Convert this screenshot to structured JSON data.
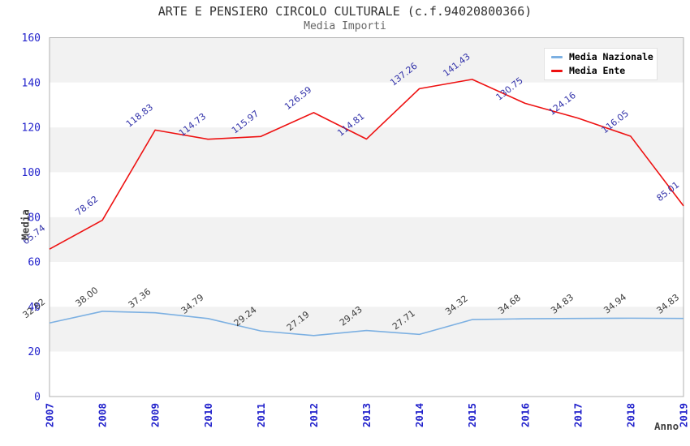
{
  "header": {
    "title": "ARTE E PENSIERO CIRCOLO CULTURALE (c.f.94020800366)",
    "subtitle": "Media Importi"
  },
  "chart_data": {
    "type": "line",
    "title": "ARTE E PENSIERO CIRCOLO CULTURALE (c.f.94020800366)",
    "subtitle": "Media Importi",
    "xlabel": "Anno",
    "ylabel": "Media",
    "categories": [
      "2007",
      "2008",
      "2009",
      "2010",
      "2011",
      "2012",
      "2013",
      "2014",
      "2015",
      "2016",
      "2017",
      "2018",
      "2019"
    ],
    "series": [
      {
        "name": "Media Nazionale",
        "color": "#7cb0e2",
        "label_color": "#3c3c3c",
        "values": [
          32.82,
          38.0,
          37.36,
          34.79,
          29.24,
          27.19,
          29.43,
          27.71,
          34.32,
          34.68,
          34.83,
          34.94,
          34.83
        ]
      },
      {
        "name": "Media Ente",
        "color": "#ee1111",
        "label_color": "#3333aa",
        "values": [
          65.74,
          78.62,
          118.83,
          114.73,
          115.97,
          126.59,
          114.81,
          137.26,
          141.43,
          130.75,
          124.16,
          116.05,
          85.01
        ]
      }
    ],
    "ylim": [
      0,
      160
    ],
    "yticks": [
      0,
      20,
      40,
      60,
      80,
      100,
      120,
      140,
      160
    ],
    "grid": "alternating-horizontal-bands",
    "band_color": "#f2f2f2",
    "plot_border_color": "#b0b0b0",
    "tick_label_color": "#2222cc",
    "legend_position": "top-right",
    "data_label_decimals": 2
  }
}
